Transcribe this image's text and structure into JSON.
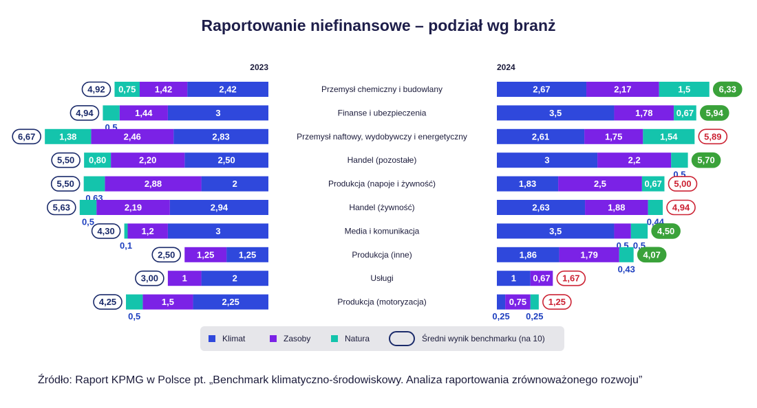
{
  "title": "Raportowanie niefinansowe – podział wg branż",
  "source": "Źródło: Raport KPMG w Polsce pt. „Benchmark klimatyczno-środowiskowy. Analiza raportowania zrównoważonego rozwoju”",
  "colors": {
    "klimat": "#2f48dc",
    "zasoby": "#7b22e6",
    "natura": "#14c4ac",
    "benchmark_outline": "#1a2a6a",
    "benchmark_up": "#3aa23a",
    "benchmark_down": "#cc2233"
  },
  "legend": {
    "klimat": "Klimat",
    "zasoby": "Zasoby",
    "natura": "Natura",
    "benchmark": "Średni wynik benchmarku (na 10)"
  },
  "chart_data": {
    "type": "bar",
    "orientation": "horizontal-stacked",
    "categories": [
      "Przemysł chemiczny i budowlany",
      "Finanse i ubezpieczenia",
      "Przemysł naftowy, wydobywczy i energetyczny",
      "Handel (pozostałe)",
      "Produkcja (napoje i żywność)",
      "Handel (żywność)",
      "Media i komunikacja",
      "Produkcja (inne)",
      "Usługi",
      "Produkcja (motoryzacja)"
    ],
    "panels": [
      {
        "year": "2023",
        "direction": "left",
        "series": [
          {
            "name": "Klimat",
            "values": [
              2.42,
              3,
              2.83,
              2.5,
              2,
              2.94,
              3,
              1.25,
              2,
              2.25
            ],
            "labels": [
              "2,42",
              "3",
              "2,83",
              "2,50",
              "2",
              "2,94",
              "3",
              "1,25",
              "2",
              "2,25"
            ]
          },
          {
            "name": "Zasoby",
            "values": [
              1.42,
              1.44,
              2.46,
              2.2,
              2.88,
              2.19,
              1.2,
              1.25,
              1,
              1.5
            ],
            "labels": [
              "1,42",
              "1,44",
              "2,46",
              "2,20",
              "2,88",
              "2,19",
              "1,2",
              "1,25",
              "1",
              "1,5"
            ]
          },
          {
            "name": "Natura",
            "values": [
              0.75,
              0.5,
              1.38,
              0.8,
              0.63,
              0.5,
              0.1,
              0,
              0,
              0.5
            ],
            "labels": [
              "0,75",
              "0,5",
              "1,38",
              "0,80",
              "0,63",
              "0,5",
              "0,1",
              "",
              "",
              "0,5"
            ]
          }
        ],
        "benchmark": {
          "values": [
            4.92,
            4.94,
            6.67,
            5.5,
            5.5,
            5.63,
            4.3,
            2.5,
            3,
            4.25
          ],
          "labels": [
            "4,92",
            "4,94",
            "6,67",
            "5,50",
            "5,50",
            "5,63",
            "4,30",
            "2,50",
            "3,00",
            "4,25"
          ],
          "trend": [
            "neutral",
            "neutral",
            "neutral",
            "neutral",
            "neutral",
            "neutral",
            "neutral",
            "neutral",
            "neutral",
            "neutral"
          ]
        }
      },
      {
        "year": "2024",
        "direction": "right",
        "series": [
          {
            "name": "Klimat",
            "values": [
              2.67,
              3.5,
              2.61,
              3,
              1.83,
              2.63,
              3.5,
              1.86,
              1,
              0.25
            ],
            "labels": [
              "2,67",
              "3,5",
              "2,61",
              "3",
              "1,83",
              "2,63",
              "3,5",
              "1,86",
              "1",
              "0,25"
            ]
          },
          {
            "name": "Zasoby",
            "values": [
              2.17,
              1.78,
              1.75,
              2.2,
              2.5,
              1.88,
              0.5,
              1.79,
              0.67,
              0.75
            ],
            "labels": [
              "2,17",
              "1,78",
              "1,75",
              "2,2",
              "2,5",
              "1,88",
              "0,5",
              "1,79",
              "0,67",
              "0,75"
            ]
          },
          {
            "name": "Natura",
            "values": [
              1.5,
              0.67,
              1.54,
              0.5,
              0.67,
              0.44,
              0.5,
              0.43,
              0,
              0.25
            ],
            "labels": [
              "1,5",
              "0,67",
              "1,54",
              "0,5",
              "0,67",
              "0,44",
              "0,5",
              "0,43",
              "",
              "0,25"
            ]
          }
        ],
        "benchmark": {
          "values": [
            6.33,
            5.94,
            5.89,
            5.7,
            5,
            4.94,
            4.5,
            4.07,
            1.67,
            1.25
          ],
          "labels": [
            "6,33",
            "5,94",
            "5,89",
            "5,70",
            "5,00",
            "4,94",
            "4,50",
            "4,07",
            "1,67",
            "1,25"
          ],
          "trend": [
            "up",
            "up",
            "down",
            "up",
            "down",
            "down",
            "up",
            "up",
            "down",
            "down"
          ]
        }
      }
    ]
  }
}
